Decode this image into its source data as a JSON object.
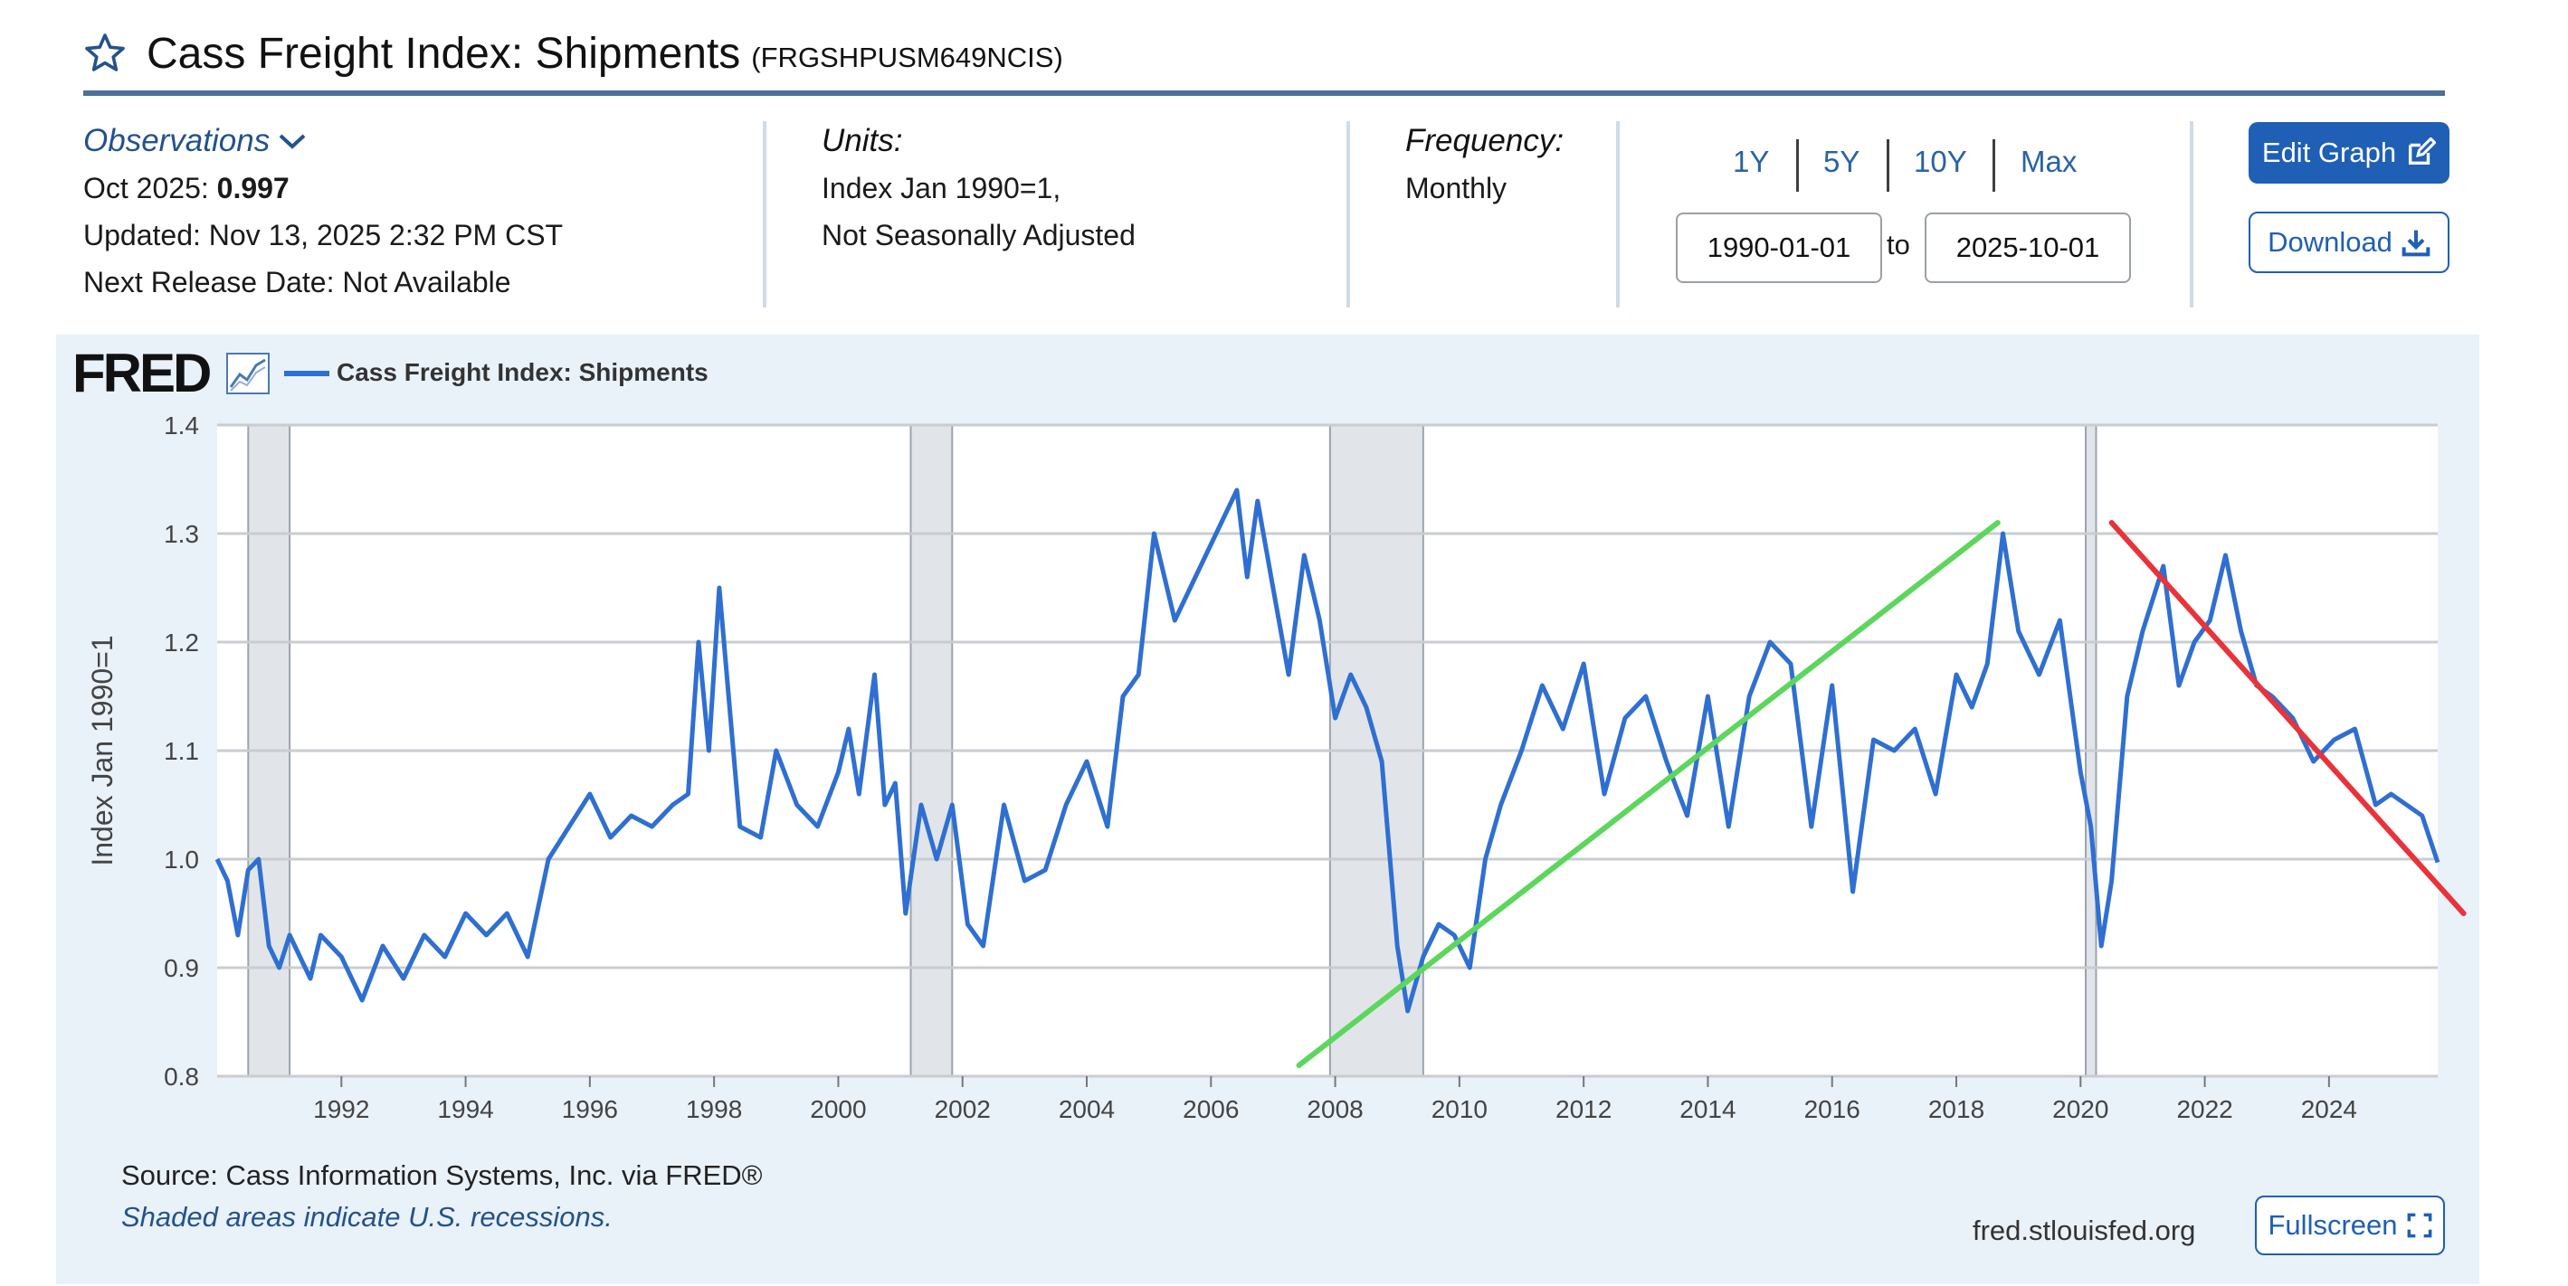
{
  "header": {
    "title": "Cass Freight Index: Shipments",
    "series_id": "(FRGSHPUSM649NCIS)"
  },
  "observations": {
    "label": "Observations",
    "latest_period": "Oct 2025:",
    "latest_value": "0.997",
    "updated": "Updated: Nov 13, 2025 2:32 PM CST",
    "next_release": "Next Release Date: Not Available"
  },
  "units": {
    "label": "Units:",
    "line1": "Index Jan 1990=1,",
    "line2": "Not Seasonally Adjusted"
  },
  "frequency": {
    "label": "Frequency:",
    "value": "Monthly"
  },
  "range": {
    "buttons": [
      "1Y",
      "5Y",
      "10Y",
      "Max"
    ],
    "start": "1990-01-01",
    "to_label": "to",
    "end": "2025-10-01"
  },
  "actions": {
    "edit": "Edit Graph",
    "download": "Download",
    "fullscreen": "Fullscreen"
  },
  "graph": {
    "logo": "FRED",
    "source": "Source: Cass Information Systems, Inc. via FRED®",
    "note": "Shaded areas indicate U.S. recessions.",
    "site": "fred.stlouisfed.org"
  },
  "colors": {
    "series": "#2f6fd1",
    "green_trend": "#5cd65c",
    "red_trend": "#e8333a",
    "recession": "#e1e5ea",
    "accent": "#1f5fb5"
  },
  "chart_data": {
    "type": "line",
    "legend": "Cass Freight Index: Shipments",
    "ylabel": "Index Jan 1990=1",
    "ylim": [
      0.8,
      1.4
    ],
    "yticks": [
      0.8,
      0.9,
      1.0,
      1.1,
      1.2,
      1.3,
      1.4
    ],
    "xlim": [
      "1990-01",
      "2025-10"
    ],
    "xticks": [
      "1992",
      "1994",
      "1996",
      "1998",
      "2000",
      "2002",
      "2004",
      "2006",
      "2008",
      "2010",
      "2012",
      "2014",
      "2016",
      "2018",
      "2020",
      "2022",
      "2024"
    ],
    "recessions": [
      [
        "1990-07",
        "1991-03"
      ],
      [
        "2001-03",
        "2001-11"
      ],
      [
        "2007-12",
        "2009-06"
      ],
      [
        "2020-02",
        "2020-04"
      ]
    ],
    "series": [
      {
        "name": "Cass Freight Index: Shipments",
        "x": [
          "1990-01",
          "1990-03",
          "1990-05",
          "1990-07",
          "1990-09",
          "1990-11",
          "1991-01",
          "1991-03",
          "1991-05",
          "1991-07",
          "1991-09",
          "1992-01",
          "1992-05",
          "1992-09",
          "1993-01",
          "1993-05",
          "1993-09",
          "1994-01",
          "1994-05",
          "1994-09",
          "1995-01",
          "1995-05",
          "1995-09",
          "1996-01",
          "1996-05",
          "1996-09",
          "1997-01",
          "1997-05",
          "1997-08",
          "1997-10",
          "1997-12",
          "1998-02",
          "1998-06",
          "1998-10",
          "1999-01",
          "1999-05",
          "1999-09",
          "2000-01",
          "2000-03",
          "2000-05",
          "2000-08",
          "2000-10",
          "2000-12",
          "2001-02",
          "2001-05",
          "2001-08",
          "2001-11",
          "2002-02",
          "2002-05",
          "2002-09",
          "2003-01",
          "2003-05",
          "2003-09",
          "2004-01",
          "2004-05",
          "2004-08",
          "2004-11",
          "2005-02",
          "2005-06",
          "2005-10",
          "2006-02",
          "2006-06",
          "2006-08",
          "2006-10",
          "2007-01",
          "2007-04",
          "2007-07",
          "2007-10",
          "2008-01",
          "2008-04",
          "2008-07",
          "2008-10",
          "2009-01",
          "2009-03",
          "2009-06",
          "2009-09",
          "2009-12",
          "2010-03",
          "2010-06",
          "2010-09",
          "2011-01",
          "2011-05",
          "2011-09",
          "2012-01",
          "2012-05",
          "2012-09",
          "2013-01",
          "2013-05",
          "2013-09",
          "2014-01",
          "2014-05",
          "2014-09",
          "2015-01",
          "2015-05",
          "2015-09",
          "2016-01",
          "2016-05",
          "2016-09",
          "2017-01",
          "2017-05",
          "2017-09",
          "2018-01",
          "2018-04",
          "2018-07",
          "2018-10",
          "2019-01",
          "2019-05",
          "2019-09",
          "2020-01",
          "2020-03",
          "2020-05",
          "2020-07",
          "2020-10",
          "2021-01",
          "2021-05",
          "2021-08",
          "2021-11",
          "2022-02",
          "2022-05",
          "2022-08",
          "2022-11",
          "2023-02",
          "2023-06",
          "2023-10",
          "2024-02",
          "2024-06",
          "2024-10",
          "2025-01",
          "2025-04",
          "2025-07",
          "2025-10"
        ],
        "values": [
          1.0,
          0.98,
          0.93,
          0.99,
          1.0,
          0.92,
          0.9,
          0.93,
          0.91,
          0.89,
          0.93,
          0.91,
          0.87,
          0.92,
          0.89,
          0.93,
          0.91,
          0.95,
          0.93,
          0.95,
          0.91,
          1.0,
          1.03,
          1.06,
          1.02,
          1.04,
          1.03,
          1.05,
          1.06,
          1.2,
          1.1,
          1.25,
          1.03,
          1.02,
          1.1,
          1.05,
          1.03,
          1.08,
          1.12,
          1.06,
          1.17,
          1.05,
          1.07,
          0.95,
          1.05,
          1.0,
          1.05,
          0.94,
          0.92,
          1.05,
          0.98,
          0.99,
          1.05,
          1.09,
          1.03,
          1.15,
          1.17,
          1.3,
          1.22,
          1.26,
          1.3,
          1.34,
          1.26,
          1.33,
          1.25,
          1.17,
          1.28,
          1.22,
          1.13,
          1.17,
          1.14,
          1.09,
          0.92,
          0.86,
          0.91,
          0.94,
          0.93,
          0.9,
          1.0,
          1.05,
          1.1,
          1.16,
          1.12,
          1.18,
          1.06,
          1.13,
          1.15,
          1.09,
          1.04,
          1.15,
          1.03,
          1.15,
          1.2,
          1.18,
          1.03,
          1.16,
          0.97,
          1.11,
          1.1,
          1.12,
          1.06,
          1.17,
          1.14,
          1.18,
          1.3,
          1.21,
          1.17,
          1.22,
          1.08,
          1.03,
          0.92,
          0.98,
          1.15,
          1.21,
          1.27,
          1.16,
          1.2,
          1.22,
          1.28,
          1.21,
          1.16,
          1.15,
          1.13,
          1.09,
          1.11,
          1.12,
          1.05,
          1.06,
          1.05,
          1.04,
          0.997
        ]
      }
    ],
    "annotations": [
      {
        "type": "trend-line",
        "color": "green",
        "from": [
          "2007-06",
          0.81
        ],
        "to": [
          "2018-09",
          1.31
        ]
      },
      {
        "type": "trend-line",
        "color": "red",
        "from": [
          "2020-07",
          1.31
        ],
        "to": [
          "2026-03",
          0.95
        ]
      }
    ]
  }
}
